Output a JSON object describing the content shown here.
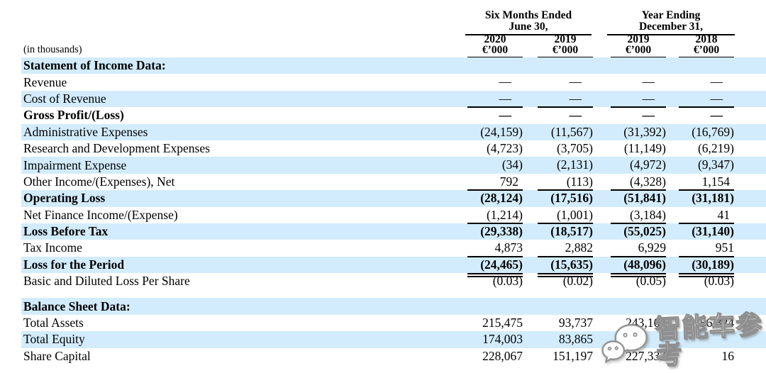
{
  "table": {
    "units_note": "(in thousands)",
    "col_groups": [
      {
        "line1": "Six Months Ended",
        "line2": "June 30,"
      },
      {
        "line1": "Year Ending",
        "line2": "December 31,"
      }
    ],
    "columns": [
      {
        "year": "2020",
        "unit": "€’000"
      },
      {
        "year": "2019",
        "unit": "€’000"
      },
      {
        "year": "2019",
        "unit": "€’000"
      },
      {
        "year": "2018",
        "unit": "€’000"
      }
    ],
    "rows": [
      {
        "label": "Statement of Income Data:",
        "bold": true,
        "shade": true,
        "values": [
          "",
          "",
          "",
          ""
        ]
      },
      {
        "label": "Revenue",
        "values": [
          "—",
          "—",
          "—",
          "—"
        ]
      },
      {
        "label": "Cost of Revenue",
        "shade": true,
        "rule": "single",
        "values": [
          "—",
          "—",
          "—",
          "—"
        ]
      },
      {
        "label": "Gross Profit/(Loss)",
        "bold": true,
        "values": [
          "—",
          "—",
          "—",
          "—"
        ]
      },
      {
        "label": "Administrative Expenses",
        "shade": true,
        "values": [
          "(24,159)",
          "(11,567)",
          "(31,392)",
          "(16,769)"
        ]
      },
      {
        "label": "Research and Development Expenses",
        "values": [
          "(4,723)",
          "(3,705)",
          "(11,149)",
          "(6,219)"
        ]
      },
      {
        "label": "Impairment Expense",
        "shade": true,
        "values": [
          "(34)",
          "(2,131)",
          "(4,972)",
          "(9,347)"
        ]
      },
      {
        "label": "Other Income/(Expenses), Net",
        "rule": "single",
        "values": [
          "792",
          "(113)",
          "(4,328)",
          "1,154"
        ]
      },
      {
        "label": "Operating Loss",
        "bold": true,
        "shade": true,
        "values": [
          "(28,124)",
          "(17,516)",
          "(51,841)",
          "(31,181)"
        ]
      },
      {
        "label": "Net Finance Income/(Expense)",
        "rule": "single",
        "values": [
          "(1,214)",
          "(1,001)",
          "(3,184)",
          "41"
        ]
      },
      {
        "label": "Loss Before Tax",
        "bold": true,
        "shade": true,
        "values": [
          "(29,338)",
          "(18,517)",
          "(55,025)",
          "(31,140)"
        ]
      },
      {
        "label": "Tax Income",
        "rule": "single",
        "values": [
          "4,873",
          "2,882",
          "6,929",
          "951"
        ]
      },
      {
        "label": "Loss for the Period",
        "bold": true,
        "shade": true,
        "rule": "double",
        "values": [
          "(24,465)",
          "(15,635)",
          "(48,096)",
          "(30,189)"
        ]
      },
      {
        "label": "Basic and Diluted Loss Per Share",
        "values": [
          "(0.03)",
          "(0.02)",
          "(0.05)",
          "(0.03)"
        ]
      },
      {
        "label": "Balance Sheet Data:",
        "bold": true,
        "shade": true,
        "gap_before": true,
        "values": [
          "",
          "",
          "",
          ""
        ]
      },
      {
        "label": "Total Assets",
        "values": [
          "215,475",
          "93,737",
          "243,167",
          "56,324"
        ]
      },
      {
        "label": "Total Equity",
        "shade": true,
        "values": [
          "174,003",
          "83,865",
          "",
          ""
        ]
      },
      {
        "label": "Share Capital",
        "values": [
          "228,067",
          "151,197",
          "227,333",
          "16"
        ]
      }
    ]
  },
  "watermark": {
    "text": "智能车参考",
    "icon": "wechat-bubbles-icon",
    "peek_digit": "2"
  },
  "colors": {
    "row_shade": "#d2ecfd",
    "text": "#000000",
    "watermark_fill": "#ffffff",
    "watermark_outline": "#8f8f8f"
  }
}
